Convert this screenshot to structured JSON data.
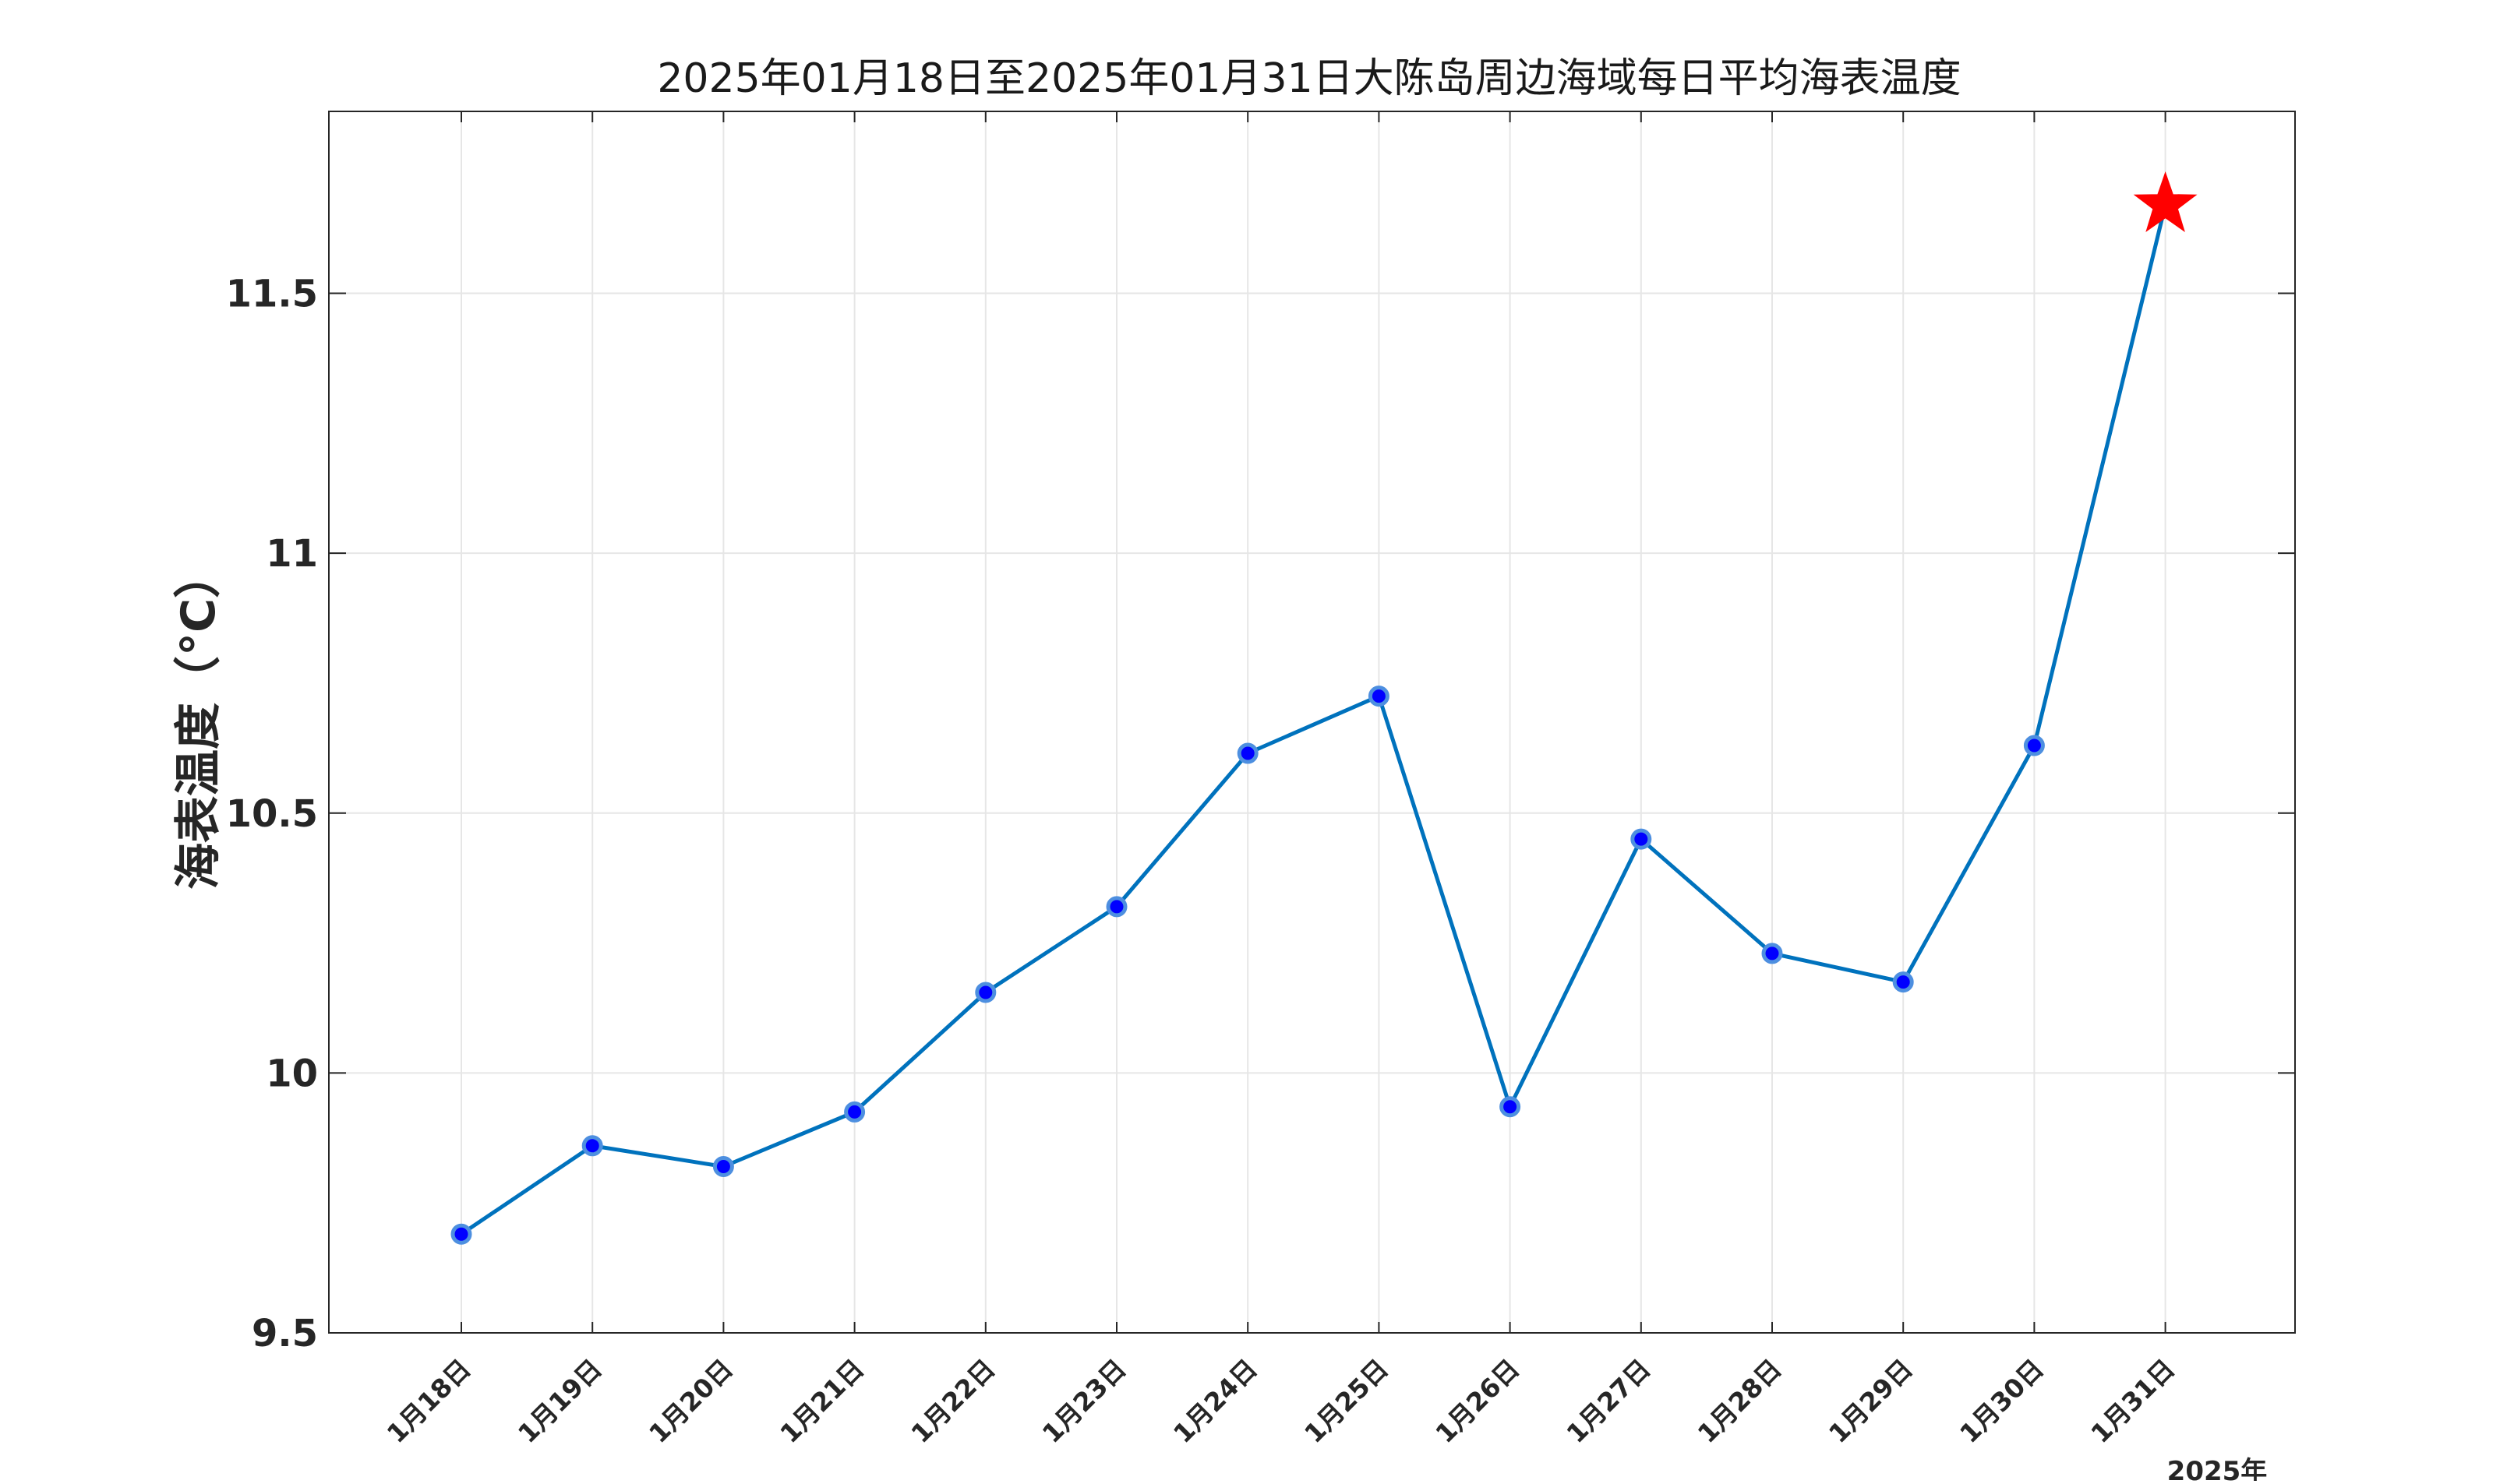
{
  "chart_data": {
    "type": "line",
    "title": "2025年01月18日至2025年01月31日大陈岛周边海域每日平均海表温度",
    "xlabel": "",
    "ylabel": "海表温度（°C）",
    "year_label": "2025年",
    "categories": [
      "1月18日",
      "1月19日",
      "1月20日",
      "1月21日",
      "1月22日",
      "1月23日",
      "1月24日",
      "1月25日",
      "1月26日",
      "1月27日",
      "1月28日",
      "1月29日",
      "1月30日",
      "1月31日"
    ],
    "series": [
      {
        "values": [
          9.69,
          9.86,
          9.82,
          9.925,
          10.155,
          10.32,
          10.615,
          10.725,
          9.935,
          10.45,
          10.23,
          10.175,
          10.63,
          11.67
        ]
      }
    ],
    "highlight_last_point": "star",
    "ylim": [
      9.5,
      11.85
    ],
    "yticks": [
      "9.5",
      "10",
      "10.5",
      "11",
      "11.5"
    ],
    "grid": true,
    "colors": {
      "line": "#0072BD",
      "marker_fill": "#0000FF",
      "marker_edge": "#4D8FE0",
      "star": "#FF0000",
      "grid": "#E6E6E6",
      "axes": "#262626"
    }
  }
}
